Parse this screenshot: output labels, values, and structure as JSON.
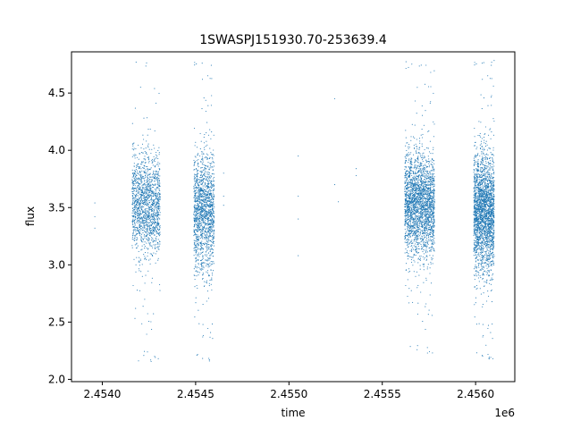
{
  "chart_data": {
    "type": "scatter",
    "title": "1SWASPJ151930.70-253639.4",
    "xlabel": "time",
    "ylabel": "flux",
    "x_offset_label": "1e6",
    "xlim": [
      2453835,
      2456210
    ],
    "ylim": [
      1.98,
      4.86
    ],
    "x_ticks": [
      2.454,
      2.4545,
      2.455,
      2.4555,
      2.456
    ],
    "x_tick_labels": [
      "2.4540",
      "2.4545",
      "2.4550",
      "2.4555",
      "2.4560"
    ],
    "y_ticks": [
      2.0,
      2.5,
      3.0,
      3.5,
      4.0,
      4.5
    ],
    "y_tick_labels": [
      "2.0",
      "2.5",
      "3.0",
      "3.5",
      "4.0",
      "4.5"
    ],
    "grid": false,
    "marker_color": "#1f77b4",
    "clusters": [
      {
        "x_range": [
          2454160,
          2454310
        ],
        "center": 3.52,
        "spread": 0.22,
        "min": 2.15,
        "max": 4.8,
        "n_points": 1500
      },
      {
        "x_range": [
          2454490,
          2454600
        ],
        "center": 3.45,
        "spread": 0.25,
        "min": 2.13,
        "max": 4.83,
        "n_points": 1500
      },
      {
        "x_range": [
          2455620,
          2455780
        ],
        "center": 3.52,
        "spread": 0.22,
        "min": 2.2,
        "max": 4.8,
        "n_points": 2400
      },
      {
        "x_range": [
          2455990,
          2456100
        ],
        "center": 3.45,
        "spread": 0.25,
        "min": 2.15,
        "max": 4.83,
        "n_points": 2400
      }
    ],
    "isolated_points": [
      {
        "x": 2453960,
        "y": 3.54
      },
      {
        "x": 2453960,
        "y": 3.42
      },
      {
        "x": 2453960,
        "y": 3.32
      },
      {
        "x": 2454650,
        "y": 3.6
      },
      {
        "x": 2454650,
        "y": 3.52
      },
      {
        "x": 2454650,
        "y": 3.8
      },
      {
        "x": 2455050,
        "y": 3.95
      },
      {
        "x": 2455050,
        "y": 3.6
      },
      {
        "x": 2455050,
        "y": 3.4
      },
      {
        "x": 2455050,
        "y": 3.08
      },
      {
        "x": 2455245,
        "y": 4.45
      },
      {
        "x": 2455245,
        "y": 3.7
      },
      {
        "x": 2455265,
        "y": 3.55
      },
      {
        "x": 2455360,
        "y": 3.84
      },
      {
        "x": 2455360,
        "y": 3.78
      }
    ]
  }
}
